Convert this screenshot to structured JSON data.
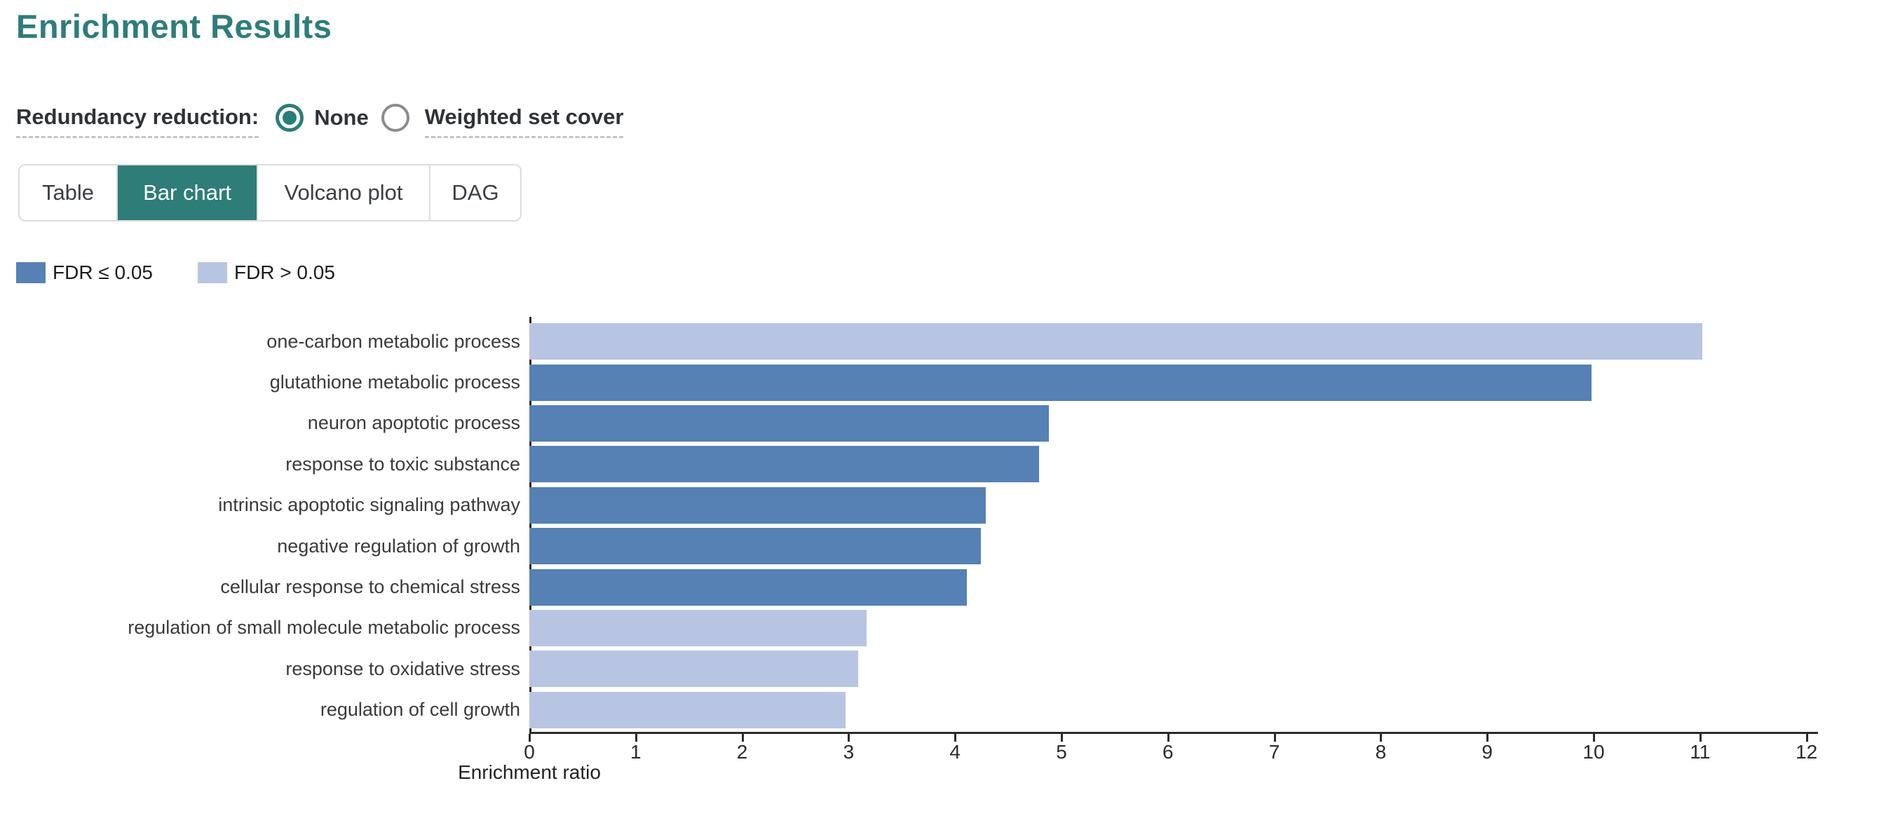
{
  "page": {
    "title": "Enrichment Results"
  },
  "redundancy": {
    "label": "Redundancy reduction:",
    "options": [
      {
        "label": "None",
        "selected": true
      },
      {
        "label": "Weighted set cover",
        "selected": false
      }
    ]
  },
  "tabs": [
    {
      "label": "Table",
      "active": false
    },
    {
      "label": "Bar chart",
      "active": true
    },
    {
      "label": "Volcano plot",
      "active": false
    },
    {
      "label": "DAG",
      "active": false
    }
  ],
  "legend": [
    {
      "label": "FDR ≤ 0.05",
      "color": "#5581b4"
    },
    {
      "label": "FDR > 0.05",
      "color": "#b7c5e2"
    }
  ],
  "colors": {
    "accent_teal": "#2e7d78",
    "title_teal": "#2e7d7b",
    "bar_significant": "#5581b4",
    "bar_nonsignificant": "#b7c5e2",
    "axis": "#2b2b2b"
  },
  "chart_data": {
    "type": "bar",
    "orientation": "horizontal",
    "title": "",
    "xlabel": "Enrichment ratio",
    "ylabel": "",
    "xlim": [
      0,
      12
    ],
    "xticks": [
      0,
      1,
      2,
      3,
      4,
      5,
      6,
      7,
      8,
      9,
      10,
      11,
      12
    ],
    "grid": false,
    "legend": [
      "FDR ≤ 0.05",
      "FDR > 0.05"
    ],
    "legend_position": "top-left",
    "categories": [
      "one-carbon metabolic process",
      "glutathione metabolic process",
      "neuron apoptotic process",
      "response to toxic substance",
      "intrinsic apoptotic signaling pathway",
      "negative regulation of growth",
      "cellular response to chemical stress",
      "regulation of small molecule metabolic process",
      "response to oxidative stress",
      "regulation of cell growth"
    ],
    "values": [
      11.02,
      9.98,
      4.88,
      4.79,
      4.29,
      4.24,
      4.11,
      3.17,
      3.09,
      2.97
    ],
    "fdr_significant": [
      false,
      true,
      true,
      true,
      true,
      true,
      true,
      false,
      false,
      false
    ]
  }
}
